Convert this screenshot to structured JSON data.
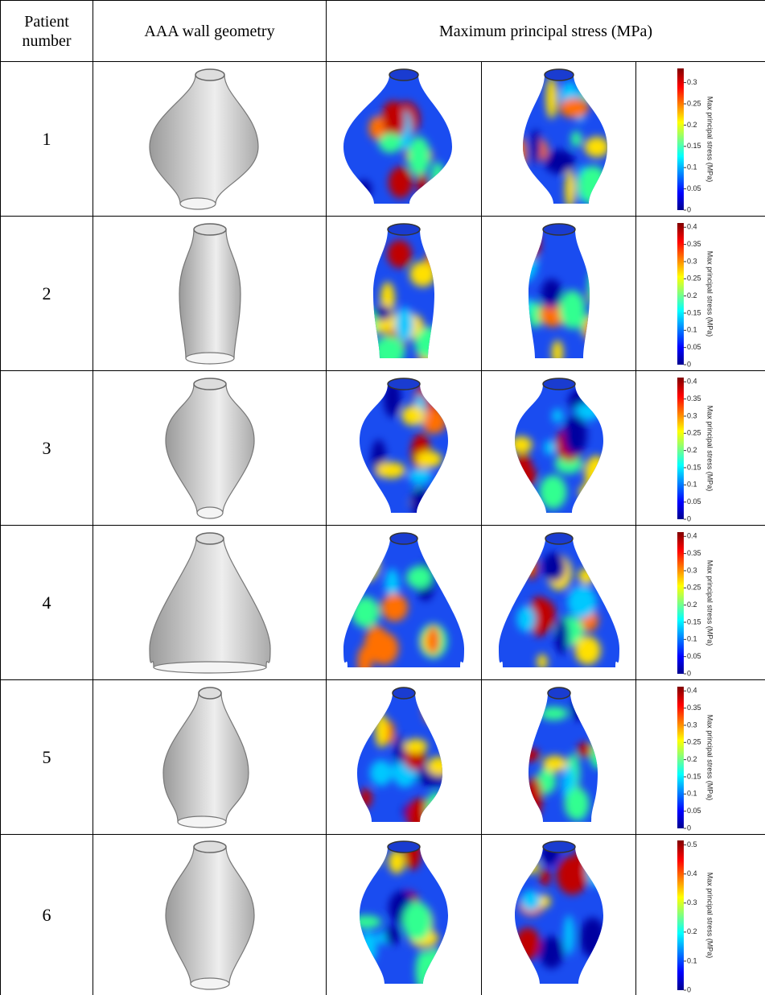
{
  "header": {
    "patient": "Patient number",
    "geometry": "AAA wall geometry",
    "stress": "Maximum principal stress (MPa)"
  },
  "rows": [
    {
      "number": 1,
      "colorbar": {
        "label": "Max principal stress (MPa)",
        "ticks": [
          0,
          0.05,
          0.1,
          0.15,
          0.2,
          0.25,
          0.3
        ]
      }
    },
    {
      "number": 2,
      "colorbar": {
        "label": "Max principal stress (MPa)",
        "ticks": [
          0,
          0.05,
          0.1,
          0.15,
          0.2,
          0.25,
          0.3,
          0.35,
          0.4
        ]
      }
    },
    {
      "number": 3,
      "colorbar": {
        "label": "Max principal stress (MPa)",
        "ticks": [
          0,
          0.05,
          0.1,
          0.15,
          0.2,
          0.25,
          0.3,
          0.35,
          0.4
        ]
      }
    },
    {
      "number": 4,
      "colorbar": {
        "label": "Max principal stress (MPa)",
        "ticks": [
          0,
          0.05,
          0.1,
          0.15,
          0.2,
          0.25,
          0.3,
          0.35,
          0.4
        ]
      }
    },
    {
      "number": 5,
      "colorbar": {
        "label": "Max principal stress (MPa)",
        "ticks": [
          0,
          0.05,
          0.1,
          0.15,
          0.2,
          0.25,
          0.3,
          0.35,
          0.4
        ]
      }
    },
    {
      "number": 6,
      "colorbar": {
        "label": "Max principal stress (MPa)",
        "ticks": [
          0,
          0.1,
          0.2,
          0.3,
          0.4,
          0.5
        ]
      }
    }
  ]
}
